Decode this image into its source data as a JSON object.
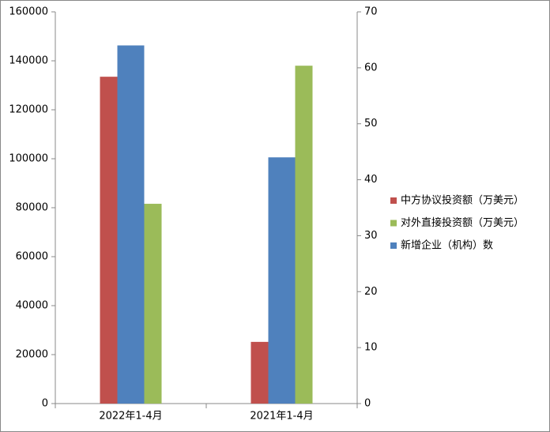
{
  "chart_data": {
    "type": "bar",
    "categories": [
      "2022年1-4月",
      "2021年1-4月"
    ],
    "series": [
      {
        "name": "中方协议投资额（万美元）",
        "color": "#c0504d",
        "values": [
          133500,
          25200
        ]
      },
      {
        "name": "对外直接投资额（万美元）",
        "color": "#9bbb59",
        "values": [
          81600,
          138000
        ]
      },
      {
        "name": "新增企业（机构）数",
        "color": "#4f81bd",
        "values": [
          64,
          44
        ],
        "axis": "y2"
      }
    ],
    "ylim": [
      0,
      160000
    ],
    "yticks": [
      0,
      20000,
      40000,
      60000,
      80000,
      100000,
      120000,
      140000,
      160000
    ],
    "y2lim": [
      0,
      70
    ],
    "y2ticks": [
      0,
      10,
      20,
      30,
      40,
      50,
      60,
      70
    ],
    "legend": "right",
    "grid": false
  }
}
